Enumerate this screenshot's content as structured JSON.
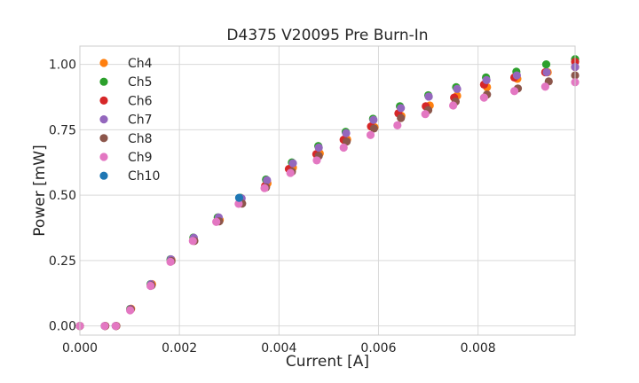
{
  "chart_data": {
    "type": "scatter",
    "title": "D4375 V20095 Pre Burn-In",
    "xlabel": "Current [A]",
    "ylabel": "Power [mW]",
    "xlim": [
      0,
      0.00995
    ],
    "ylim": [
      -0.035,
      1.07
    ],
    "xticks": [
      0.0,
      0.002,
      0.004,
      0.006,
      0.008
    ],
    "xtick_labels": [
      "0.000",
      "0.002",
      "0.004",
      "0.006",
      "0.008"
    ],
    "yticks": [
      0.0,
      0.25,
      0.5,
      0.75,
      1.0
    ],
    "ytick_labels": [
      "0.00",
      "0.25",
      "0.50",
      "0.75",
      "1.00"
    ],
    "grid": true,
    "legend_position": "top-left",
    "series": [
      {
        "name": "Ch4",
        "color": "#ff7f0e",
        "x": [
          0,
          0.00051,
          0.00073,
          0.00103,
          0.00145,
          0.00184,
          0.00229,
          0.00281,
          0.00324,
          0.00377,
          0.00428,
          0.00482,
          0.00537,
          0.00592,
          0.00646,
          0.00703,
          0.00758,
          0.00818,
          0.00879,
          0.0094,
          0.00995
        ],
        "y": [
          0,
          0,
          0,
          0.066,
          0.16,
          0.253,
          0.33,
          0.405,
          0.478,
          0.545,
          0.605,
          0.66,
          0.713,
          0.76,
          0.803,
          0.843,
          0.88,
          0.913,
          0.945,
          0.97,
          0.99
        ]
      },
      {
        "name": "Ch5",
        "color": "#2ca02c",
        "x": [
          0,
          0.0005,
          0.00072,
          0.00101,
          0.00142,
          0.00182,
          0.00228,
          0.00277,
          0.00323,
          0.00374,
          0.00426,
          0.00479,
          0.00534,
          0.00589,
          0.00643,
          0.007,
          0.00756,
          0.00816,
          0.00877,
          0.00937,
          0.00995
        ],
        "y": [
          0,
          0,
          0,
          0.065,
          0.16,
          0.255,
          0.338,
          0.415,
          0.49,
          0.56,
          0.625,
          0.688,
          0.742,
          0.792,
          0.84,
          0.882,
          0.913,
          0.95,
          0.972,
          1.0,
          1.02
        ]
      },
      {
        "name": "Ch6",
        "color": "#d62728",
        "x": [
          0,
          0.00051,
          0.00073,
          0.00102,
          0.00143,
          0.00183,
          0.00228,
          0.00278,
          0.00322,
          0.00372,
          0.0042,
          0.00475,
          0.0053,
          0.00585,
          0.0064,
          0.00695,
          0.00752,
          0.00812,
          0.00873,
          0.00935,
          0.00995
        ],
        "y": [
          0,
          0,
          0,
          0.064,
          0.157,
          0.25,
          0.33,
          0.405,
          0.475,
          0.535,
          0.6,
          0.657,
          0.712,
          0.763,
          0.813,
          0.84,
          0.873,
          0.923,
          0.95,
          0.97,
          1.01
        ]
      },
      {
        "name": "Ch7",
        "color": "#9467bd",
        "x": [
          0,
          0.0005,
          0.00072,
          0.00102,
          0.00143,
          0.00183,
          0.00229,
          0.00279,
          0.00325,
          0.00376,
          0.00428,
          0.0048,
          0.00535,
          0.0059,
          0.00645,
          0.00701,
          0.00758,
          0.00817,
          0.00878,
          0.00938,
          0.00995
        ],
        "y": [
          0,
          0,
          0,
          0.065,
          0.16,
          0.255,
          0.337,
          0.415,
          0.488,
          0.557,
          0.622,
          0.682,
          0.737,
          0.788,
          0.833,
          0.877,
          0.906,
          0.94,
          0.958,
          0.97,
          0.99
        ]
      },
      {
        "name": "Ch8",
        "color": "#8c564b",
        "x": [
          0,
          0.00051,
          0.00073,
          0.00102,
          0.00144,
          0.00184,
          0.0023,
          0.0028,
          0.00326,
          0.00374,
          0.00426,
          0.0048,
          0.00536,
          0.00591,
          0.00645,
          0.007,
          0.00755,
          0.00818,
          0.0088,
          0.00942,
          0.00995
        ],
        "y": [
          0,
          0,
          0,
          0.063,
          0.155,
          0.248,
          0.325,
          0.4,
          0.468,
          0.53,
          0.59,
          0.65,
          0.705,
          0.755,
          0.795,
          0.825,
          0.858,
          0.885,
          0.908,
          0.935,
          0.958
        ]
      },
      {
        "name": "Ch9",
        "color": "#e377c2",
        "x": [
          0,
          0.0005,
          0.00072,
          0.00101,
          0.00142,
          0.00182,
          0.00227,
          0.00274,
          0.00319,
          0.00371,
          0.00423,
          0.00476,
          0.0053,
          0.00584,
          0.00638,
          0.00694,
          0.0075,
          0.00812,
          0.00873,
          0.00935,
          0.00995
        ],
        "y": [
          0,
          0,
          0,
          0.06,
          0.153,
          0.245,
          0.325,
          0.398,
          0.467,
          0.527,
          0.585,
          0.633,
          0.682,
          0.73,
          0.767,
          0.81,
          0.843,
          0.873,
          0.898,
          0.915,
          0.932
        ]
      },
      {
        "name": "Ch10",
        "color": "#1f77b4",
        "x": [
          0.0032
        ],
        "y": [
          0.49
        ]
      }
    ]
  }
}
